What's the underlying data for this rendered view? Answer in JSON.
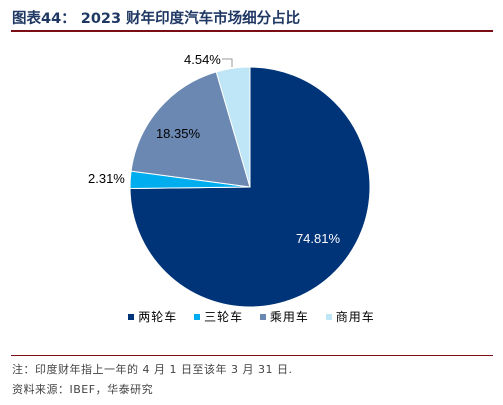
{
  "figure": {
    "title": "图表44： 2023 财年印度汽车市场细分占比",
    "note": "注：印度财年指上一年的 4 月 1 日至该年 3 月 31 日.",
    "source": "资料来源：IBEF，华泰研究"
  },
  "chart_data": {
    "type": "pie",
    "title": "",
    "unit": "%",
    "legend_position": "bottom",
    "start_angle_deg": 0,
    "direction": "clockwise",
    "slices": [
      {
        "name": "两轮车",
        "value": 74.81,
        "label": "74.81%",
        "color": "#003478"
      },
      {
        "name": "三轮车",
        "value": 2.31,
        "label": "2.31%",
        "color": "#00aeef"
      },
      {
        "name": "乘用车",
        "value": 18.35,
        "label": "18.35%",
        "color": "#6a88b1"
      },
      {
        "name": "商用车",
        "value": 4.54,
        "label": "4.54%",
        "color": "#bfe6f6"
      }
    ]
  }
}
